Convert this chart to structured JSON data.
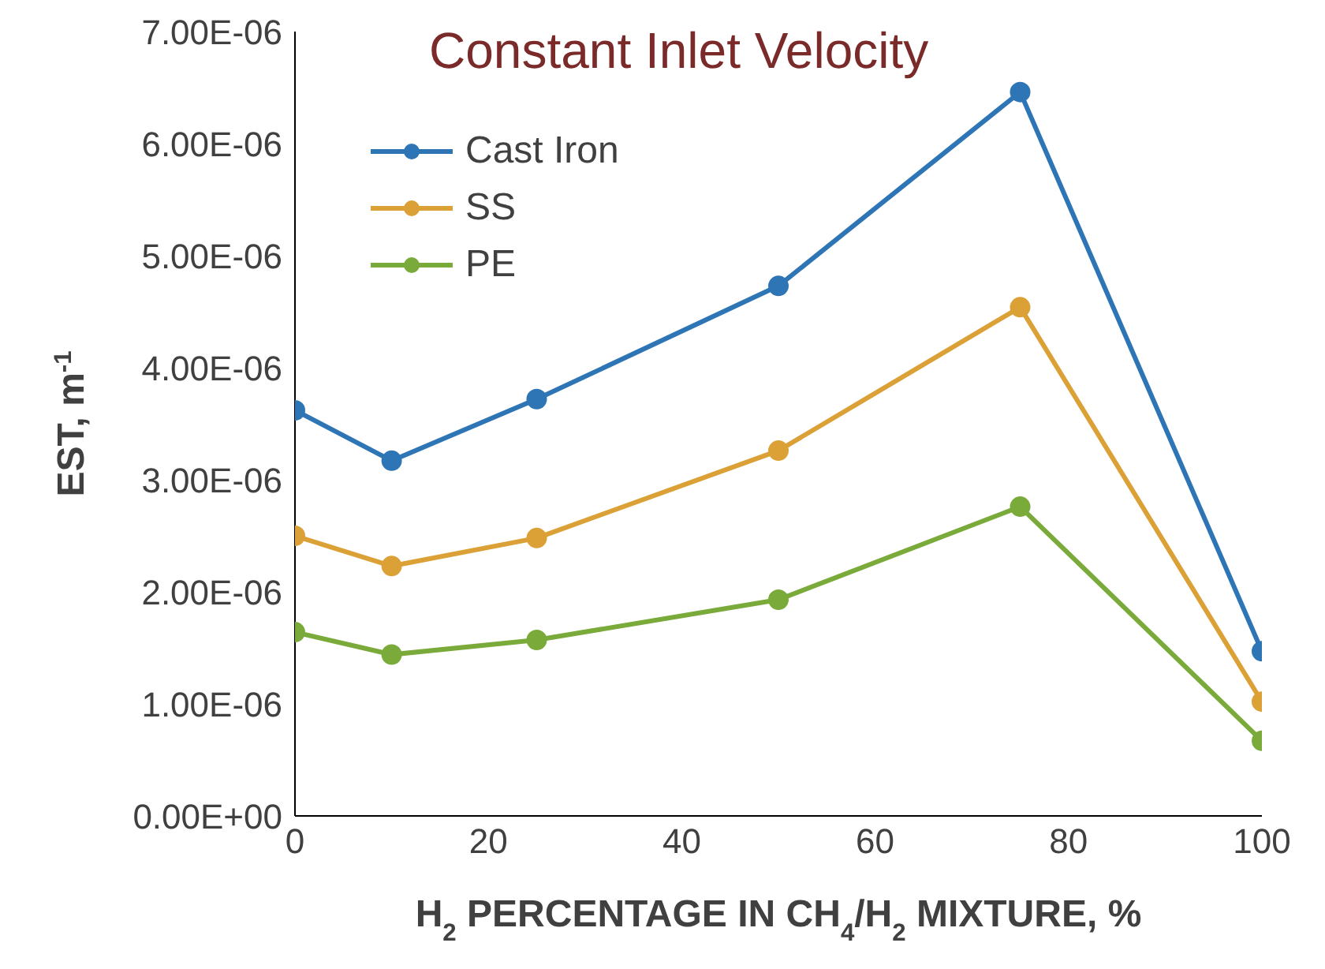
{
  "chart_data": {
    "type": "line",
    "title": "Constant Inlet Velocity",
    "xlabel": "H$_{2}$ PERCENTAGE IN CH$_{4}$/H$_{2}$ MIXTURE, %",
    "ylabel": "EST, m$^{-1}$",
    "x": [
      0,
      10,
      25,
      50,
      75,
      100
    ],
    "series": [
      {
        "name": "Cast Iron",
        "color": "#2e75b6",
        "values": [
          3.62e-06,
          3.17e-06,
          3.72e-06,
          4.73e-06,
          6.46e-06,
          1.47e-06
        ]
      },
      {
        "name": "SS",
        "color": "#dba136",
        "values": [
          2.5e-06,
          2.23e-06,
          2.48e-06,
          3.26e-06,
          4.54e-06,
          1.02e-06
        ]
      },
      {
        "name": "PE",
        "color": "#7aab3a",
        "values": [
          1.64e-06,
          1.44e-06,
          1.57e-06,
          1.93e-06,
          2.76e-06,
          6.7e-07
        ]
      }
    ],
    "xlim": [
      0,
      100
    ],
    "xticks": [
      0,
      20,
      40,
      60,
      80,
      100
    ],
    "ylim": [
      0,
      7e-06
    ],
    "yticks": [
      {
        "value": 0,
        "label": "0.00E+00"
      },
      {
        "value": 1e-06,
        "label": "1.00E-06"
      },
      {
        "value": 2e-06,
        "label": "2.00E-06"
      },
      {
        "value": 3e-06,
        "label": "3.00E-06"
      },
      {
        "value": 4e-06,
        "label": "4.00E-06"
      },
      {
        "value": 5e-06,
        "label": "5.00E-06"
      },
      {
        "value": 6e-06,
        "label": "6.00E-06"
      },
      {
        "value": 7e-06,
        "label": "7.00E-06"
      }
    ],
    "grid": false,
    "legend": "top left",
    "marker": "circle",
    "line_style": "solid"
  }
}
